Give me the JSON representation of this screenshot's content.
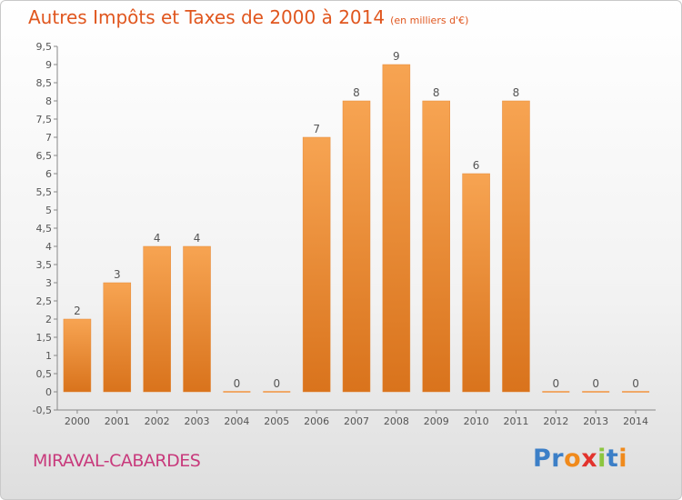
{
  "title": "Autres Impôts et Taxes de 2000 à 2014",
  "subtitle": "(en milliers d'€)",
  "commune": "MIRAVAL-CABARDES",
  "logo": "Proxiti",
  "colors": {
    "title": "#e0561e",
    "bar_top": "#f7a452",
    "bar_bottom": "#d9731c",
    "bar_zero": "#f0a868",
    "commune": "#c83a7c",
    "logo_letters": [
      "#3c7fc7",
      "#3c7fc7",
      "#f08a1c",
      "#e2332d",
      "#8cc63f",
      "#3c7fc7",
      "#f08a1c"
    ]
  },
  "chart_data": {
    "type": "bar",
    "title": "Autres Impôts et Taxes de 2000 à 2014",
    "subtitle": "(en milliers d'€)",
    "categories": [
      "2000",
      "2001",
      "2002",
      "2003",
      "2004",
      "2005",
      "2006",
      "2007",
      "2008",
      "2009",
      "2010",
      "2011",
      "2012",
      "2013",
      "2014"
    ],
    "values": [
      2,
      3,
      4,
      4,
      0,
      0,
      7,
      8,
      9,
      8,
      6,
      8,
      0,
      0,
      0
    ],
    "data_labels": [
      "2",
      "3",
      "4",
      "4",
      "0",
      "0",
      "7",
      "8",
      "9",
      "8",
      "6",
      "8",
      "0",
      "0",
      "0"
    ],
    "ylim": [
      -0.5,
      9.5
    ],
    "yticks": [
      -0.5,
      0,
      0.5,
      1,
      1.5,
      2,
      2.5,
      3,
      3.5,
      4,
      4.5,
      5,
      5.5,
      6,
      6.5,
      7,
      7.5,
      8,
      8.5,
      9,
      9.5
    ],
    "ytick_labels": [
      "-0,5",
      "0",
      "0,5",
      "1",
      "1,5",
      "2",
      "2,5",
      "3",
      "3,5",
      "4",
      "4,5",
      "5",
      "5,5",
      "6",
      "6,5",
      "7",
      "7,5",
      "8",
      "8,5",
      "9",
      "9,5"
    ],
    "grid": false,
    "legend": "none"
  }
}
